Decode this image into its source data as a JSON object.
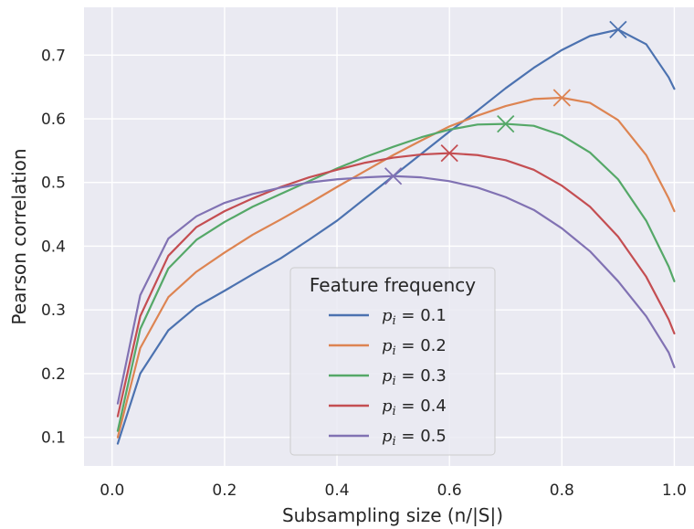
{
  "chart_data": {
    "type": "line",
    "title": "",
    "xlabel": "Subsampling size (n/|S|)",
    "ylabel": "Pearson correlation",
    "xlim": [
      -0.05,
      1.035
    ],
    "ylim": [
      0.055,
      0.775
    ],
    "xticks": [
      0.0,
      0.2,
      0.4,
      0.6,
      0.8,
      1.0
    ],
    "xtick_labels": [
      "0.0",
      "0.2",
      "0.4",
      "0.6",
      "0.8",
      "1.0"
    ],
    "yticks": [
      0.1,
      0.2,
      0.3,
      0.4,
      0.5,
      0.6,
      0.7
    ],
    "ytick_labels": [
      "0.1",
      "0.2",
      "0.3",
      "0.4",
      "0.5",
      "0.6",
      "0.7"
    ],
    "grid": true,
    "legend": {
      "title": "Feature frequency",
      "placement": "lower-center"
    },
    "series": [
      {
        "name": "p_i = 0.1",
        "label_var": "p",
        "label_sub": "i",
        "label_value": " = 0.1",
        "color": "#4c72b0",
        "x": [
          0.01,
          0.05,
          0.1,
          0.15,
          0.2,
          0.25,
          0.3,
          0.35,
          0.4,
          0.45,
          0.5,
          0.55,
          0.6,
          0.65,
          0.7,
          0.75,
          0.8,
          0.85,
          0.9,
          0.95,
          0.99,
          1.0
        ],
        "y": [
          0.09,
          0.2,
          0.268,
          0.305,
          0.33,
          0.356,
          0.381,
          0.41,
          0.44,
          0.475,
          0.51,
          0.545,
          0.58,
          0.613,
          0.648,
          0.68,
          0.708,
          0.73,
          0.74,
          0.717,
          0.665,
          0.647
        ],
        "peak": [
          0.9,
          0.74
        ]
      },
      {
        "name": "p_i = 0.2",
        "label_var": "p",
        "label_sub": "i",
        "label_value": " = 0.2",
        "color": "#dd8452",
        "x": [
          0.01,
          0.05,
          0.1,
          0.15,
          0.2,
          0.25,
          0.3,
          0.35,
          0.4,
          0.45,
          0.5,
          0.55,
          0.6,
          0.65,
          0.7,
          0.75,
          0.8,
          0.85,
          0.9,
          0.95,
          0.99,
          1.0
        ],
        "y": [
          0.1,
          0.24,
          0.32,
          0.36,
          0.39,
          0.418,
          0.442,
          0.467,
          0.493,
          0.518,
          0.543,
          0.566,
          0.588,
          0.605,
          0.62,
          0.631,
          0.633,
          0.625,
          0.598,
          0.543,
          0.475,
          0.455
        ],
        "peak": [
          0.8,
          0.633
        ]
      },
      {
        "name": "p_i = 0.3",
        "label_var": "p",
        "label_sub": "i",
        "label_value": " = 0.3",
        "color": "#55a868",
        "x": [
          0.01,
          0.05,
          0.1,
          0.15,
          0.2,
          0.25,
          0.3,
          0.35,
          0.4,
          0.45,
          0.5,
          0.55,
          0.6,
          0.65,
          0.7,
          0.75,
          0.8,
          0.85,
          0.9,
          0.95,
          0.99,
          1.0
        ],
        "y": [
          0.11,
          0.27,
          0.365,
          0.41,
          0.438,
          0.462,
          0.482,
          0.502,
          0.522,
          0.54,
          0.556,
          0.571,
          0.583,
          0.591,
          0.592,
          0.589,
          0.574,
          0.547,
          0.505,
          0.44,
          0.368,
          0.345
        ],
        "peak": [
          0.7,
          0.592
        ]
      },
      {
        "name": "p_i = 0.4",
        "label_var": "p",
        "label_sub": "i",
        "label_value": " = 0.4",
        "color": "#c44e52",
        "x": [
          0.01,
          0.05,
          0.1,
          0.15,
          0.2,
          0.25,
          0.3,
          0.35,
          0.4,
          0.45,
          0.5,
          0.55,
          0.6,
          0.65,
          0.7,
          0.75,
          0.8,
          0.85,
          0.9,
          0.95,
          0.99,
          1.0
        ],
        "y": [
          0.133,
          0.29,
          0.385,
          0.43,
          0.455,
          0.475,
          0.493,
          0.508,
          0.52,
          0.531,
          0.539,
          0.544,
          0.546,
          0.543,
          0.535,
          0.52,
          0.495,
          0.462,
          0.415,
          0.352,
          0.285,
          0.263
        ],
        "peak": [
          0.6,
          0.546
        ]
      },
      {
        "name": "p_i = 0.5",
        "label_var": "p",
        "label_sub": "i",
        "label_value": " = 0.5",
        "color": "#8172b3",
        "x": [
          0.01,
          0.05,
          0.1,
          0.15,
          0.2,
          0.25,
          0.3,
          0.35,
          0.4,
          0.45,
          0.5,
          0.55,
          0.6,
          0.65,
          0.7,
          0.75,
          0.8,
          0.85,
          0.9,
          0.95,
          0.99,
          1.0
        ],
        "y": [
          0.153,
          0.323,
          0.412,
          0.447,
          0.468,
          0.482,
          0.492,
          0.5,
          0.505,
          0.508,
          0.51,
          0.508,
          0.502,
          0.492,
          0.477,
          0.457,
          0.428,
          0.392,
          0.345,
          0.29,
          0.233,
          0.21
        ],
        "peak": [
          0.5,
          0.51
        ]
      }
    ]
  }
}
